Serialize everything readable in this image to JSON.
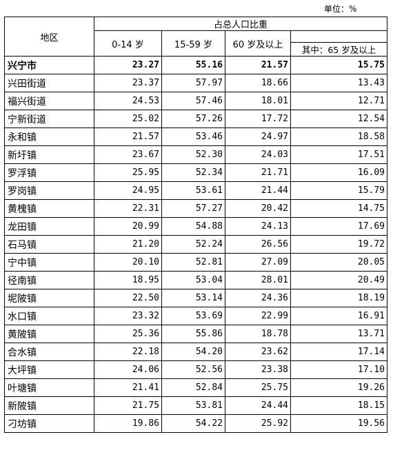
{
  "unit_label": "单位：%",
  "header": {
    "region": "地区",
    "group": "占总人口比重",
    "age_0_14": "0-14 岁",
    "age_15_59": "15-59 岁",
    "age_60_plus": "60 岁及以上",
    "age_65_plus": "其中：65 岁及以上"
  },
  "rows": [
    {
      "name": "兴宁市",
      "a": "23.27",
      "b": "55.16",
      "c": "21.57",
      "d": "15.75"
    },
    {
      "name": "兴田街道",
      "a": "23.37",
      "b": "57.97",
      "c": "18.66",
      "d": "13.43"
    },
    {
      "name": "福兴街道",
      "a": "24.53",
      "b": "57.46",
      "c": "18.01",
      "d": "12.71"
    },
    {
      "name": "宁新街道",
      "a": "25.02",
      "b": "57.26",
      "c": "17.72",
      "d": "12.54"
    },
    {
      "name": "永和镇",
      "a": "21.57",
      "b": "53.46",
      "c": "24.97",
      "d": "18.58"
    },
    {
      "name": "新圩镇",
      "a": "23.67",
      "b": "52.30",
      "c": "24.03",
      "d": "17.51"
    },
    {
      "name": "罗浮镇",
      "a": "25.95",
      "b": "52.34",
      "c": "21.71",
      "d": "16.09"
    },
    {
      "name": "罗岗镇",
      "a": "24.95",
      "b": "53.61",
      "c": "21.44",
      "d": "15.79"
    },
    {
      "name": "黄槐镇",
      "a": "22.31",
      "b": "57.27",
      "c": "20.42",
      "d": "14.75"
    },
    {
      "name": "龙田镇",
      "a": "20.99",
      "b": "54.88",
      "c": "24.13",
      "d": "17.69"
    },
    {
      "name": "石马镇",
      "a": "21.20",
      "b": "52.24",
      "c": "26.56",
      "d": "19.72"
    },
    {
      "name": "宁中镇",
      "a": "20.10",
      "b": "52.81",
      "c": "27.09",
      "d": "20.05"
    },
    {
      "name": "径南镇",
      "a": "18.95",
      "b": "53.04",
      "c": "28.01",
      "d": "20.49"
    },
    {
      "name": "坭陂镇",
      "a": "22.50",
      "b": "53.14",
      "c": "24.36",
      "d": "18.19"
    },
    {
      "name": "水口镇",
      "a": "23.32",
      "b": "53.69",
      "c": "22.99",
      "d": "16.91"
    },
    {
      "name": "黄陂镇",
      "a": "25.36",
      "b": "55.86",
      "c": "18.78",
      "d": "13.71"
    },
    {
      "name": "合水镇",
      "a": "22.18",
      "b": "54.20",
      "c": "23.62",
      "d": "17.14"
    },
    {
      "name": "大坪镇",
      "a": "24.06",
      "b": "52.56",
      "c": "23.38",
      "d": "17.10"
    },
    {
      "name": "叶塘镇",
      "a": "21.41",
      "b": "52.84",
      "c": "25.75",
      "d": "19.26"
    },
    {
      "name": "新陂镇",
      "a": "21.75",
      "b": "53.81",
      "c": "24.44",
      "d": "18.15"
    },
    {
      "name": "刁坊镇",
      "a": "19.86",
      "b": "54.22",
      "c": "25.92",
      "d": "19.56"
    }
  ]
}
